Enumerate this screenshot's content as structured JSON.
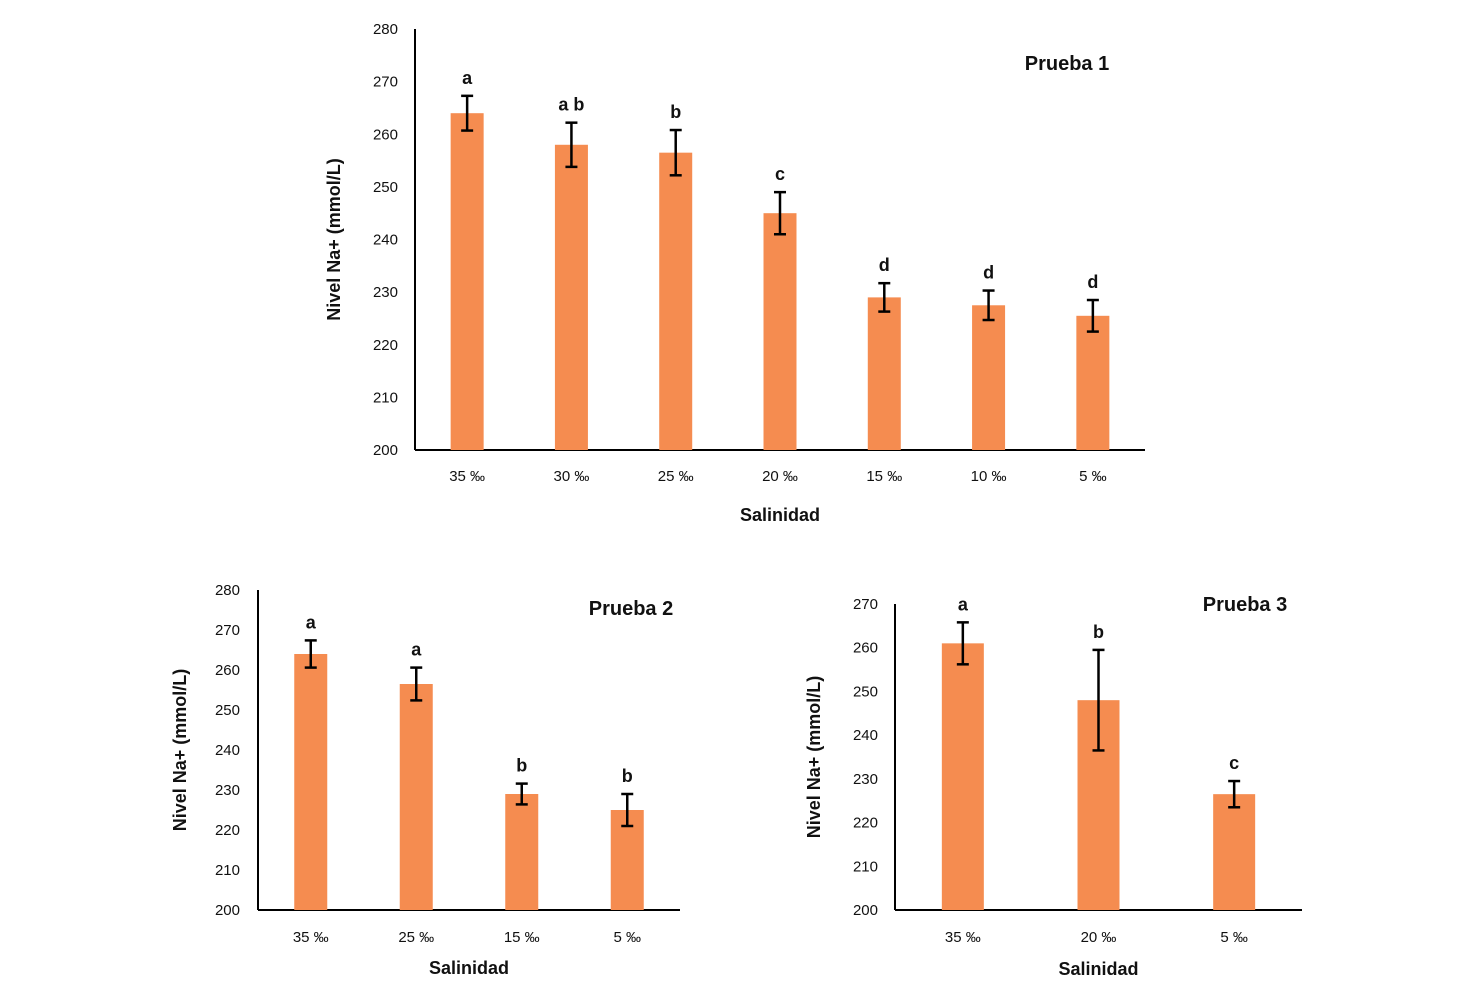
{
  "colors": {
    "bar": "#f58c50",
    "axis": "#000000",
    "errorbar": "#000000"
  },
  "chart_data": [
    {
      "type": "bar",
      "title": "Prueba 1",
      "xlabel": "Salinidad",
      "ylabel": "Nivel Na+ (mmol/L)",
      "ylim": [
        200,
        280
      ],
      "yticks": [
        "200",
        "210",
        "220",
        "230",
        "240",
        "250",
        "260",
        "270",
        "280"
      ],
      "categories": [
        "35 ‰",
        "30 ‰",
        "25 ‰",
        "20 ‰",
        "15 ‰",
        "10 ‰",
        "5 ‰"
      ],
      "values": [
        264,
        258,
        256.5,
        245,
        229,
        227.5,
        225.5
      ],
      "errors": [
        3.3,
        4.2,
        4.3,
        4,
        2.7,
        2.8,
        3
      ],
      "labels": [
        "a",
        "a b",
        "b",
        "c",
        "d",
        "d",
        "d"
      ],
      "legend": "none",
      "grid": false
    },
    {
      "type": "bar",
      "title": "Prueba 2",
      "xlabel": "Salinidad",
      "ylabel": "Nivel Na+ (mmol/L)",
      "ylim": [
        200,
        280
      ],
      "yticks": [
        "200",
        "210",
        "220",
        "230",
        "240",
        "250",
        "260",
        "270",
        "280"
      ],
      "categories": [
        "35 ‰",
        "25 ‰",
        "15 ‰",
        "5 ‰"
      ],
      "values": [
        264,
        256.5,
        229,
        225
      ],
      "errors": [
        3.4,
        4.1,
        2.6,
        4
      ],
      "labels": [
        "a",
        "a",
        "b",
        "b"
      ],
      "legend": "none",
      "grid": false
    },
    {
      "type": "bar",
      "title": "Prueba 3",
      "xlabel": "Salinidad",
      "ylabel": "Nivel Na+ (mmol/L)",
      "ylim": [
        200,
        270
      ],
      "yticks": [
        "200",
        "210",
        "220",
        "230",
        "240",
        "250",
        "260",
        "270"
      ],
      "categories": [
        "35 ‰",
        "20 ‰",
        "5 ‰"
      ],
      "values": [
        261,
        248,
        226.5
      ],
      "errors": [
        4.8,
        11.5,
        3
      ],
      "labels": [
        "a",
        "b",
        "c"
      ],
      "legend": "none",
      "grid": false
    }
  ]
}
